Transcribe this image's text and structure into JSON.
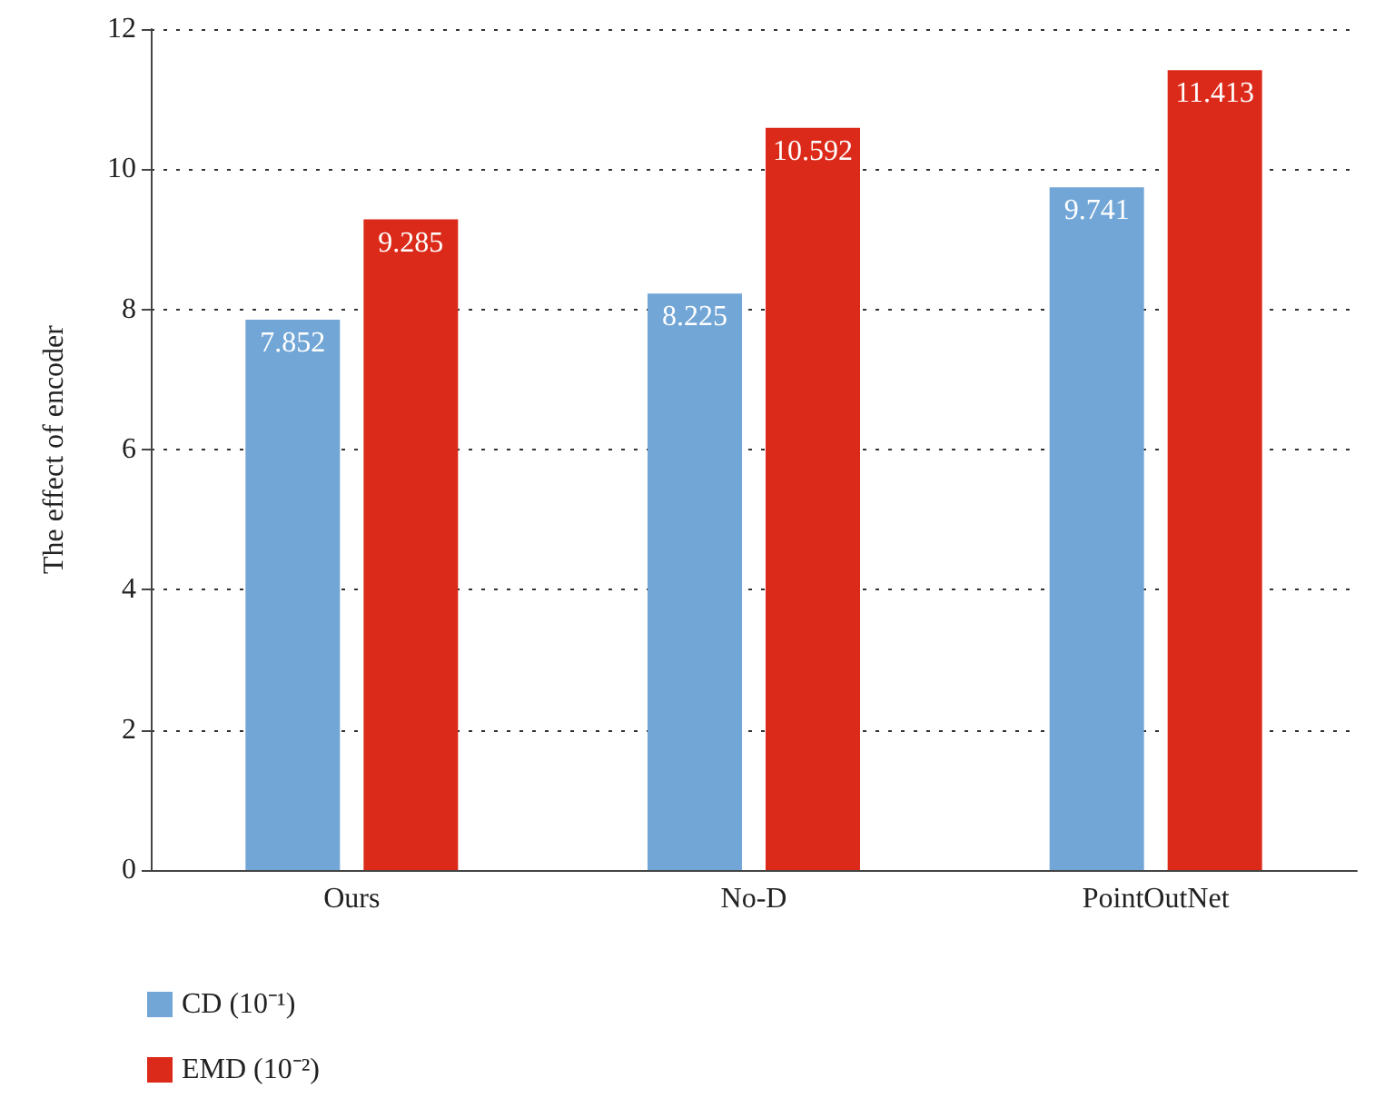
{
  "chart_data": {
    "type": "bar",
    "ylabel": "The effect of encoder",
    "categories": [
      "Ours",
      "No-D",
      "PointOutNet"
    ],
    "series": [
      {
        "name": "CD (10⁻¹)",
        "color": "#72a6d6",
        "values": [
          7.852,
          8.225,
          9.741
        ]
      },
      {
        "name": "EMD (10⁻²)",
        "color": "#dc2a1a",
        "values": [
          9.285,
          10.592,
          11.413
        ]
      }
    ],
    "ylim": [
      0,
      12
    ],
    "yticks": [
      0,
      2,
      4,
      6,
      8,
      10,
      12
    ],
    "grid": "y",
    "legend": "bottom left",
    "data_labels": true
  }
}
